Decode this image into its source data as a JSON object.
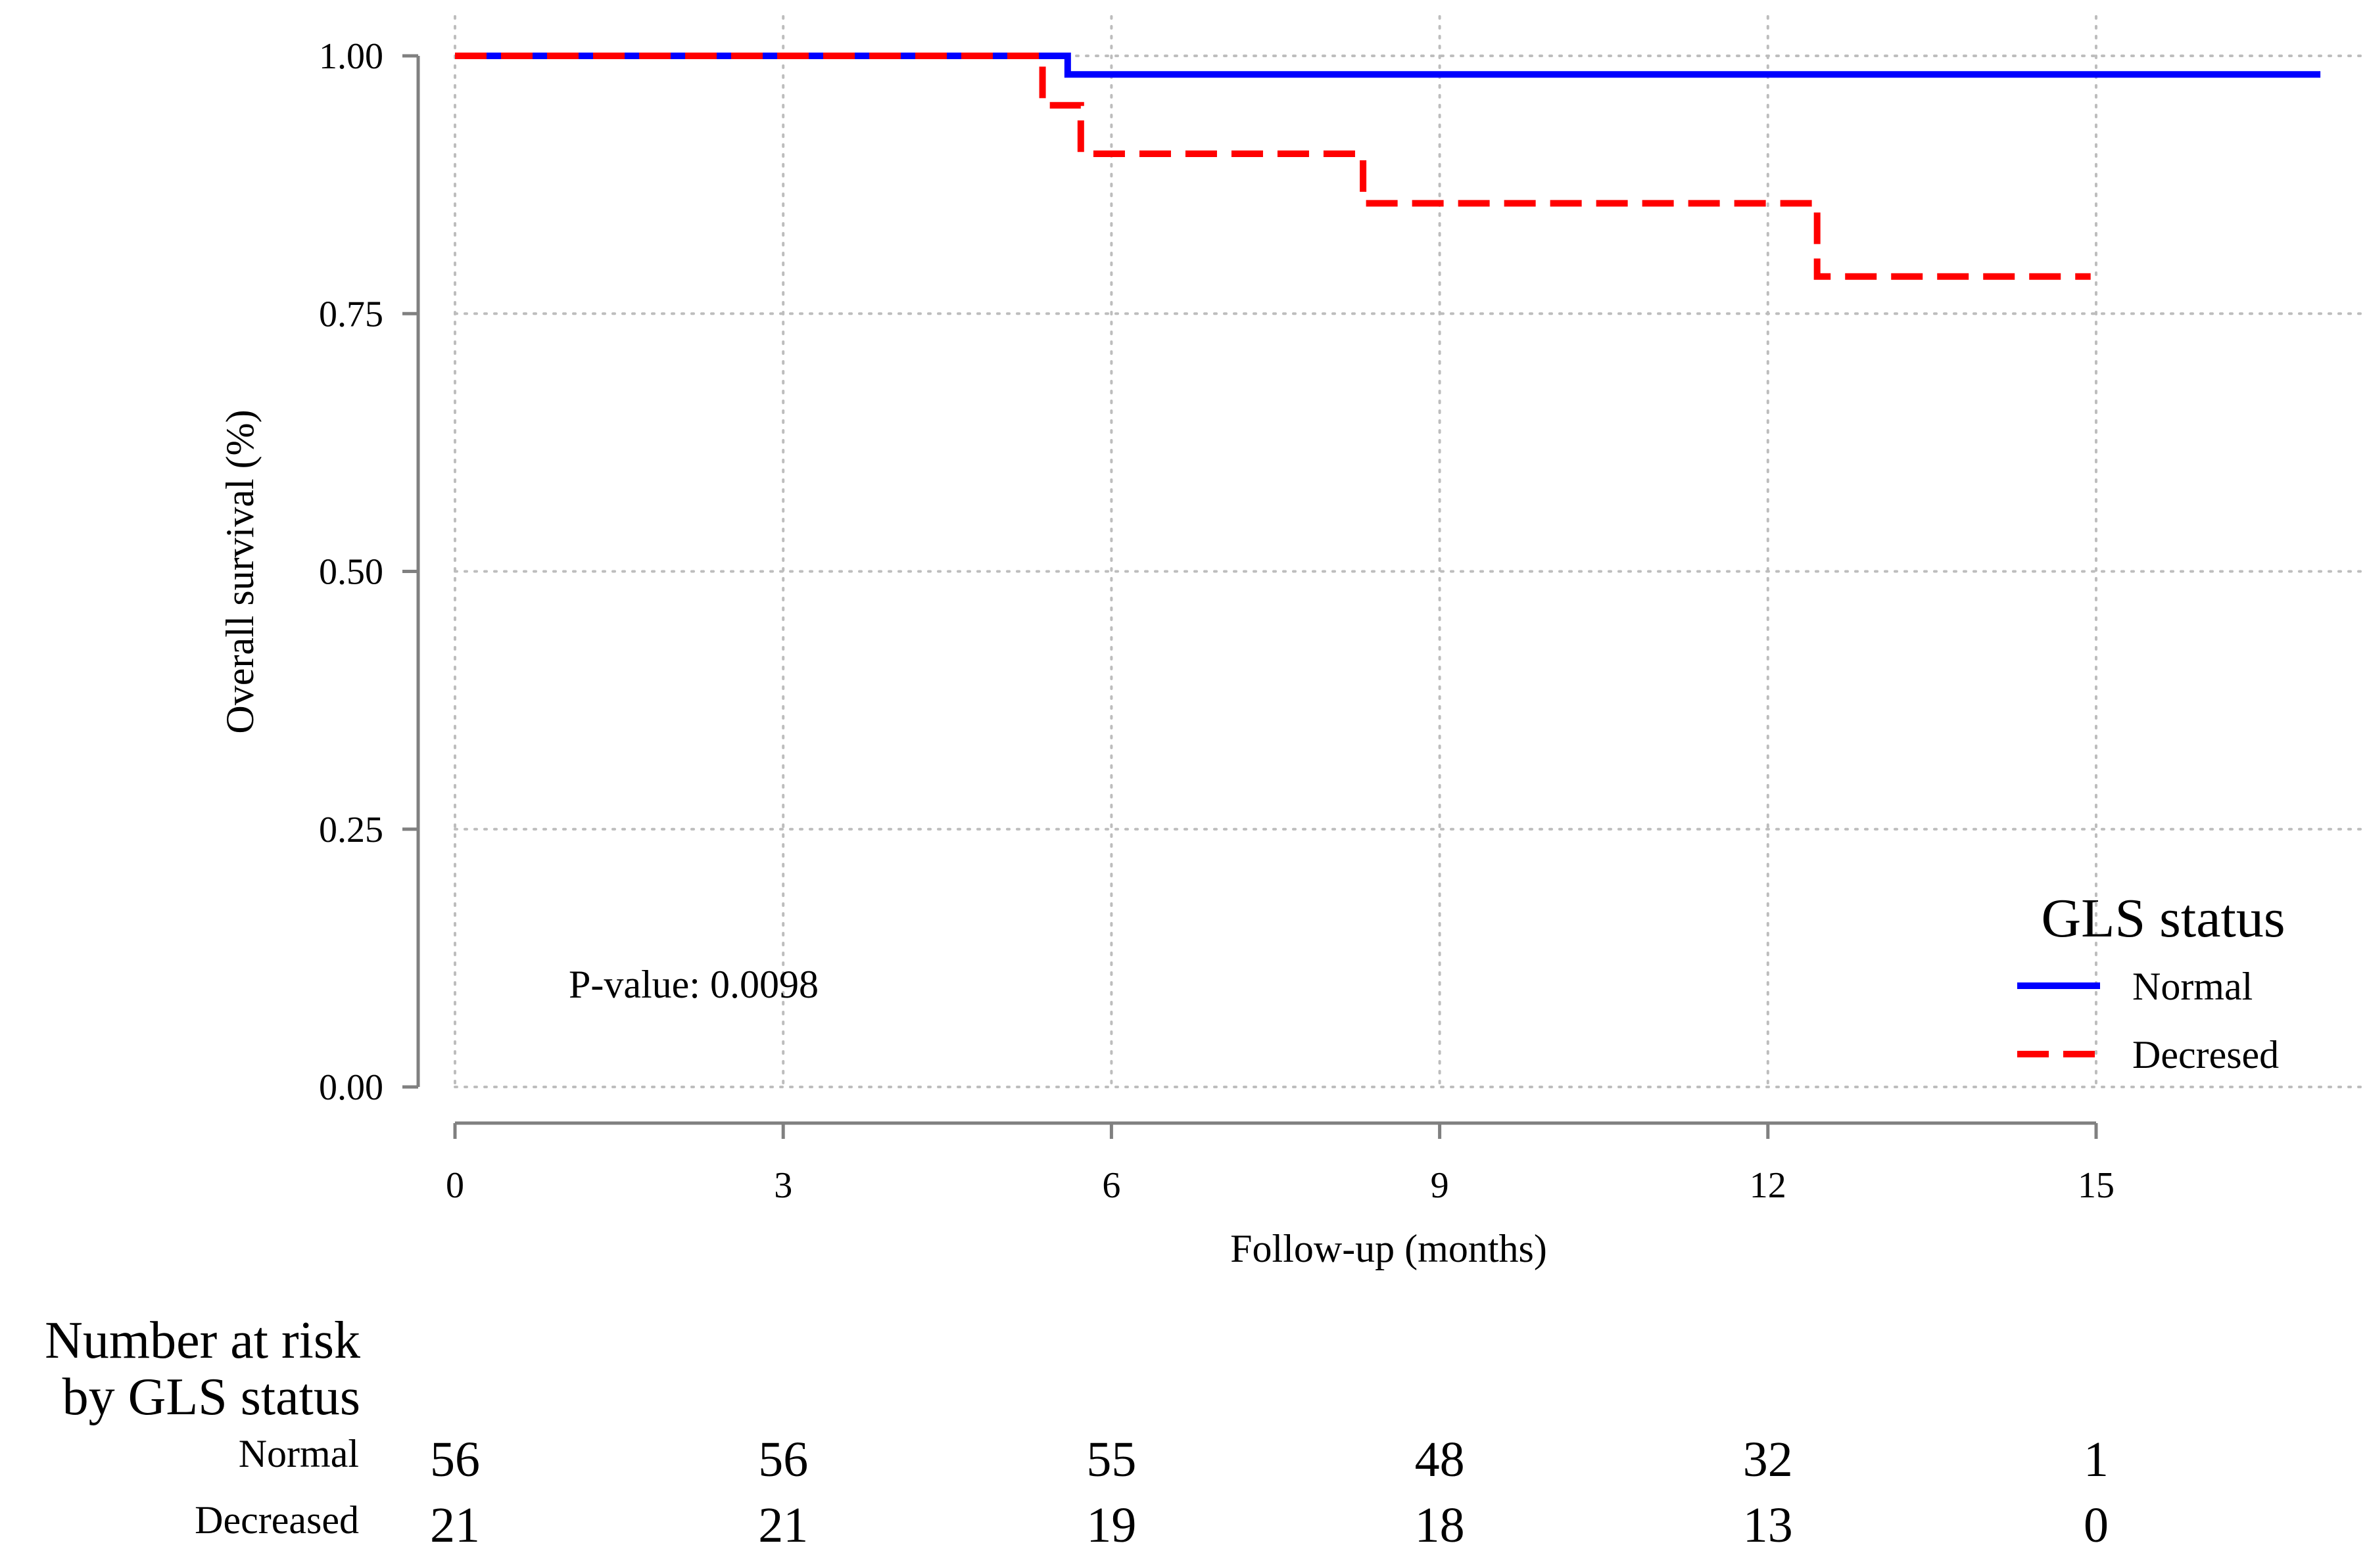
{
  "chart_data": {
    "type": "line",
    "subtype": "kaplan-meier step",
    "xlabel": "Follow-up (months)",
    "ylabel": "Overall survival (%)",
    "xlim": [
      0,
      17.1
    ],
    "ylim": [
      0,
      1
    ],
    "x_ticks": [
      0,
      3,
      6,
      9,
      12,
      15
    ],
    "x_tick_labels": [
      "0",
      "3",
      "6",
      "9",
      "12",
      "15"
    ],
    "y_ticks": [
      0,
      0.25,
      0.5,
      0.75,
      1.0
    ],
    "y_tick_labels": [
      "0.00",
      "0.25",
      "0.50",
      "0.75",
      "1.00"
    ],
    "grid": true,
    "annotation": "P-value: 0.0098",
    "legend": {
      "title": "GLS status",
      "placement": "bottom-right",
      "entries": [
        "Normal",
        "Decresed"
      ]
    },
    "series": [
      {
        "name": "Normal",
        "color": "#0000ff",
        "line_style": "solid",
        "steps": [
          {
            "x": 0,
            "y": 1.0
          },
          {
            "x": 5.6,
            "y": 0.982
          },
          {
            "x": 17.05,
            "y": 0.982
          }
        ]
      },
      {
        "name": "Decresed",
        "color": "#ff0000",
        "line_style": "dashed",
        "steps": [
          {
            "x": 0,
            "y": 1.0
          },
          {
            "x": 5.37,
            "y": 0.952
          },
          {
            "x": 5.72,
            "y": 0.905
          },
          {
            "x": 8.3,
            "y": 0.857
          },
          {
            "x": 12.45,
            "y": 0.786
          },
          {
            "x": 14.95,
            "y": 0.786
          }
        ]
      }
    ],
    "risk_table": {
      "title_line1": "Number at risk",
      "title_line2": "by GLS status",
      "times": [
        0,
        3,
        6,
        9,
        12,
        15
      ],
      "rows": [
        {
          "label": "Normal",
          "counts": [
            "56",
            "56",
            "55",
            "48",
            "32",
            "1"
          ]
        },
        {
          "label": "Decreased",
          "counts": [
            "21",
            "21",
            "19",
            "18",
            "13",
            "0"
          ]
        }
      ]
    }
  }
}
